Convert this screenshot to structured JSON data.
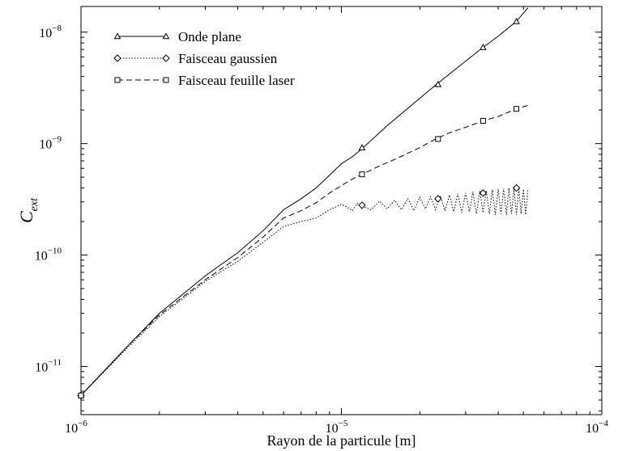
{
  "chart_data": {
    "type": "line",
    "title": "",
    "xlabel": "Rayon de la particule [m]",
    "ylabel_main": "C",
    "ylabel_sub": "ext",
    "x_scale": "log",
    "y_scale": "log",
    "xlim": [
      1e-06,
      0.0001
    ],
    "ylim": [
      3.7e-12,
      1.7e-08
    ],
    "grid": false,
    "legend_position": "top-left",
    "x_ticks": [
      {
        "value": 1e-06,
        "base": "10",
        "exp": "−6"
      },
      {
        "value": 1e-05,
        "base": "10",
        "exp": "−5"
      },
      {
        "value": 0.0001,
        "base": "10",
        "exp": "−4"
      }
    ],
    "y_ticks": [
      {
        "value": 1e-11,
        "base": "10",
        "exp": "−11"
      },
      {
        "value": 1e-10,
        "base": "10",
        "exp": "−10"
      },
      {
        "value": 1e-09,
        "base": "10",
        "exp": "−9"
      },
      {
        "value": 1e-08,
        "base": "10",
        "exp": "−8"
      }
    ],
    "series": [
      {
        "name": "Onde plane",
        "line_style": "solid",
        "marker": "triangle",
        "x": [
          1e-06,
          1.5e-06,
          2e-06,
          3e-06,
          4e-06,
          5e-06,
          6e-06,
          7e-06,
          8e-06,
          9e-06,
          1e-05,
          1.1e-05,
          1.2e-05,
          1.5e-05,
          2e-05,
          2.3e-05,
          3e-05,
          3.5e-05,
          4e-05,
          4.7e-05,
          5.2e-05
        ],
        "y": [
          5.5e-12,
          1.5e-11,
          3e-11,
          6.5e-11,
          1.05e-10,
          1.65e-10,
          2.55e-10,
          3.2e-10,
          4e-10,
          5.2e-10,
          6.6e-10,
          7.6e-10,
          9e-10,
          1.45e-09,
          2.55e-09,
          3.35e-09,
          5.5e-09,
          7.3e-09,
          9.2e-09,
          1.25e-08,
          1.65e-08
        ],
        "marker_x": [
          1e-06,
          1.2e-05,
          2.35e-05,
          3.5e-05,
          4.7e-05
        ],
        "marker_y": [
          5.5e-12,
          9.2e-10,
          3.4e-09,
          7.3e-09,
          1.25e-08
        ]
      },
      {
        "name": "Faisceau gaussien",
        "line_style": "dotted",
        "marker": "diamond",
        "x": [
          1e-06,
          1.5e-06,
          2e-06,
          3e-06,
          4e-06,
          5e-06,
          6e-06,
          7e-06,
          8e-06,
          9e-06,
          1e-05,
          1.05e-05,
          1.1e-05,
          1.15e-05,
          1.2e-05,
          1.3e-05,
          1.4e-05,
          1.5e-05,
          1.6e-05,
          1.7e-05,
          1.8e-05,
          1.9e-05,
          2e-05,
          2.1e-05,
          2.2e-05,
          2.3e-05,
          2.4e-05,
          2.5e-05,
          2.6e-05,
          2.7e-05,
          2.8e-05,
          2.9e-05,
          3e-05,
          3.1e-05,
          3.2e-05,
          3.3e-05,
          3.4e-05,
          3.5e-05,
          3.6e-05,
          3.7e-05,
          3.8e-05,
          3.9e-05,
          4e-05,
          4.1e-05,
          4.2e-05,
          4.3e-05,
          4.4e-05,
          4.5e-05,
          4.6e-05,
          4.7e-05,
          4.8e-05,
          4.9e-05,
          5e-05,
          5.1e-05,
          5.2e-05
        ],
        "y": [
          5.5e-12,
          1.45e-11,
          2.8e-11,
          5.8e-11,
          8.8e-11,
          1.3e-10,
          1.8e-10,
          2e-10,
          2.15e-10,
          2.55e-10,
          2.85e-10,
          2.7e-10,
          2.5e-10,
          2.9e-10,
          2.75e-10,
          2.55e-10,
          3.05e-10,
          2.6e-10,
          3.1e-10,
          2.55e-10,
          3.2e-10,
          2.5e-10,
          3.3e-10,
          2.6e-10,
          3.35e-10,
          2.55e-10,
          3.4e-10,
          2.5e-10,
          3.45e-10,
          2.45e-10,
          3.55e-10,
          2.4e-10,
          3.6e-10,
          2.45e-10,
          3.7e-10,
          2.35e-10,
          3.75e-10,
          2.4e-10,
          3.8e-10,
          2.35e-10,
          3.85e-10,
          2.3e-10,
          3.9e-10,
          2.35e-10,
          3.95e-10,
          2.3e-10,
          4e-10,
          2.35e-10,
          3.95e-10,
          2.3e-10,
          4e-10,
          2.35e-10,
          3.9e-10,
          2.3e-10,
          3.85e-10
        ],
        "marker_x": [
          1e-06,
          1.2e-05,
          2.35e-05,
          3.5e-05,
          4.7e-05
        ],
        "marker_y": [
          5.5e-12,
          2.8e-10,
          3.2e-10,
          3.6e-10,
          4e-10
        ]
      },
      {
        "name": "Faisceau feuille laser",
        "line_style": "dashed",
        "marker": "square",
        "x": [
          1e-06,
          1.5e-06,
          2e-06,
          3e-06,
          4e-06,
          5e-06,
          6e-06,
          7e-06,
          8e-06,
          9e-06,
          1e-05,
          1.1e-05,
          1.2e-05,
          1.4e-05,
          1.6e-05,
          1.8e-05,
          2e-05,
          2.3e-05,
          2.6e-05,
          3e-05,
          3.5e-05,
          4e-05,
          4.7e-05,
          5.2e-05
        ],
        "y": [
          5.5e-12,
          1.5e-11,
          2.9e-11,
          6e-11,
          9.5e-11,
          1.45e-10,
          2.15e-10,
          2.5e-10,
          2.95e-10,
          3.6e-10,
          4.2e-10,
          4.8e-10,
          5.3e-10,
          6.3e-10,
          7.2e-10,
          8.2e-10,
          9.2e-10,
          1.1e-09,
          1.25e-09,
          1.4e-09,
          1.6e-09,
          1.75e-09,
          2.05e-09,
          2.2e-09
        ],
        "marker_x": [
          1e-06,
          1.2e-05,
          2.35e-05,
          3.5e-05,
          4.7e-05
        ],
        "marker_y": [
          5.5e-12,
          5.3e-10,
          1.1e-09,
          1.6e-09,
          2.05e-09
        ]
      }
    ]
  }
}
